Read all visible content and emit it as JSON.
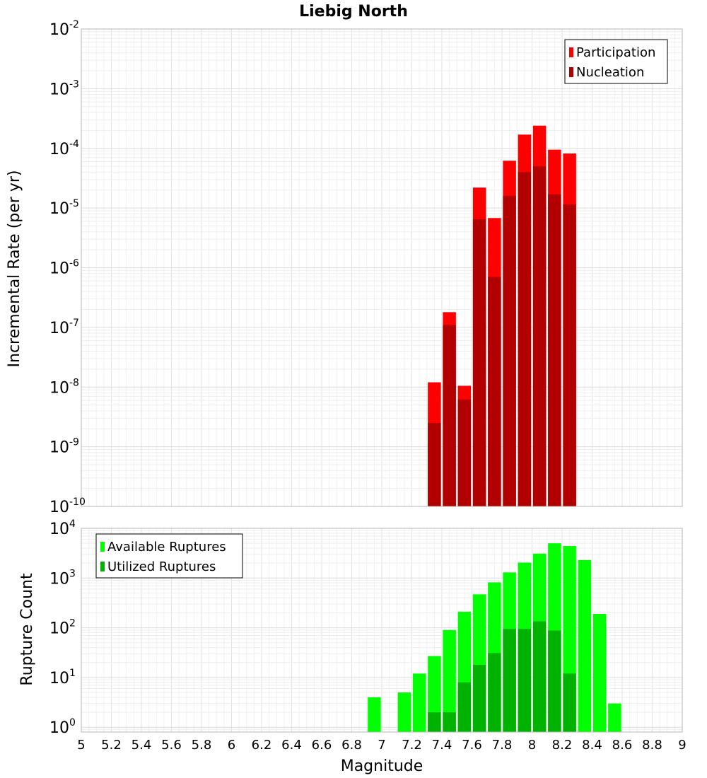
{
  "chart_data": [
    {
      "type": "bar",
      "title": "Liebig North",
      "xlabel": "",
      "ylabel": "Incremental Rate (per yr)",
      "yscale": "log",
      "ylim": [
        1e-10,
        0.01
      ],
      "xlim": [
        5,
        9
      ],
      "grid": true,
      "legend_position": "top-right",
      "yticks": [
        {
          "mant": "10",
          "exp": "-2"
        },
        {
          "mant": "10",
          "exp": "-3"
        },
        {
          "mant": "10",
          "exp": "-4"
        },
        {
          "mant": "10",
          "exp": "-5"
        },
        {
          "mant": "10",
          "exp": "-6"
        },
        {
          "mant": "10",
          "exp": "-7"
        },
        {
          "mant": "10",
          "exp": "-8"
        },
        {
          "mant": "10",
          "exp": "-9"
        },
        {
          "mant": "10",
          "exp": "-10"
        }
      ],
      "x": [
        7.35,
        7.45,
        7.55,
        7.65,
        7.75,
        7.85,
        7.95,
        8.05,
        8.15,
        8.25
      ],
      "series": [
        {
          "name": "Participation",
          "color": "#ff0000",
          "values": [
            1.2e-08,
            1.8e-07,
            1.05e-08,
            2.2e-05,
            6.8e-06,
            6.2e-05,
            0.00017,
            0.00024,
            9.5e-05,
            8.2e-05
          ]
        },
        {
          "name": "Nucleation",
          "color": "#b20000",
          "values": [
            2.5e-09,
            1.1e-07,
            6.2e-09,
            6.5e-06,
            7e-07,
            1.6e-05,
            4e-05,
            5e-05,
            1.7e-05,
            1.15e-05
          ]
        }
      ]
    },
    {
      "type": "bar",
      "title": "",
      "xlabel": "Magnitude",
      "ylabel": "Rupture Count",
      "yscale": "log",
      "ylim": [
        0.8,
        10000
      ],
      "xlim": [
        5,
        9
      ],
      "grid": true,
      "legend_position": "top-left",
      "yticks": [
        {
          "mant": "10",
          "exp": "4"
        },
        {
          "mant": "10",
          "exp": "3"
        },
        {
          "mant": "10",
          "exp": "2"
        },
        {
          "mant": "10",
          "exp": "1"
        },
        {
          "mant": "10",
          "exp": "0"
        }
      ],
      "xticks": [
        "5",
        "5.2",
        "5.4",
        "5.6",
        "5.8",
        "6",
        "6.2",
        "6.4",
        "6.6",
        "6.8",
        "7",
        "7.2",
        "7.4",
        "7.6",
        "7.8",
        "8",
        "8.2",
        "8.4",
        "8.6",
        "8.8",
        "9"
      ],
      "series": [
        {
          "name": "Available Ruptures",
          "color": "#00ff00",
          "x": [
            6.95,
            7.15,
            7.25,
            7.35,
            7.45,
            7.55,
            7.65,
            7.75,
            7.85,
            7.95,
            8.05,
            8.15,
            8.25,
            8.35,
            8.45,
            8.55
          ],
          "values": [
            4,
            5,
            12,
            27,
            90,
            210,
            470,
            820,
            1300,
            2050,
            3100,
            5000,
            4400,
            2300,
            190,
            3
          ]
        },
        {
          "name": "Utilized Ruptures",
          "color": "#00b200",
          "x": [
            7.35,
            7.45,
            7.55,
            7.65,
            7.75,
            7.85,
            7.95,
            8.05,
            8.15,
            8.25
          ],
          "values": [
            2,
            2,
            8,
            18,
            31,
            95,
            95,
            135,
            88,
            12
          ]
        }
      ]
    }
  ]
}
